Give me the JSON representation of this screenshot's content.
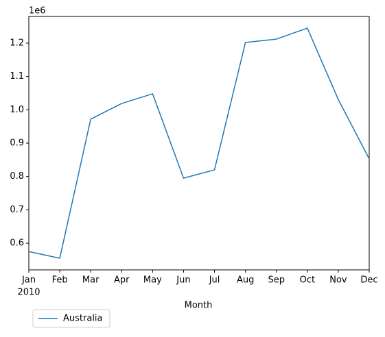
{
  "chart_data": {
    "type": "line",
    "x_label": "Month",
    "offset_label": "1e6",
    "year_label": "2010",
    "categories": [
      "Jan",
      "Feb",
      "Mar",
      "Apr",
      "May",
      "Jun",
      "Jul",
      "Aug",
      "Sep",
      "Oct",
      "Nov",
      "Dec"
    ],
    "series": [
      {
        "name": "Australia",
        "color": "#1f77b4",
        "values": [
          0.575,
          0.555,
          0.972,
          1.019,
          1.048,
          0.795,
          0.82,
          1.202,
          1.212,
          1.245,
          1.031,
          0.853
        ]
      }
    ],
    "ylim": [
      0.52,
      1.28
    ],
    "yticks": [
      0.6,
      0.7,
      0.8,
      0.9,
      {
        "value": 1,
        "label": "1.0"
      },
      1.1,
      1.2
    ],
    "grid": false,
    "legend_position": "below-left"
  }
}
